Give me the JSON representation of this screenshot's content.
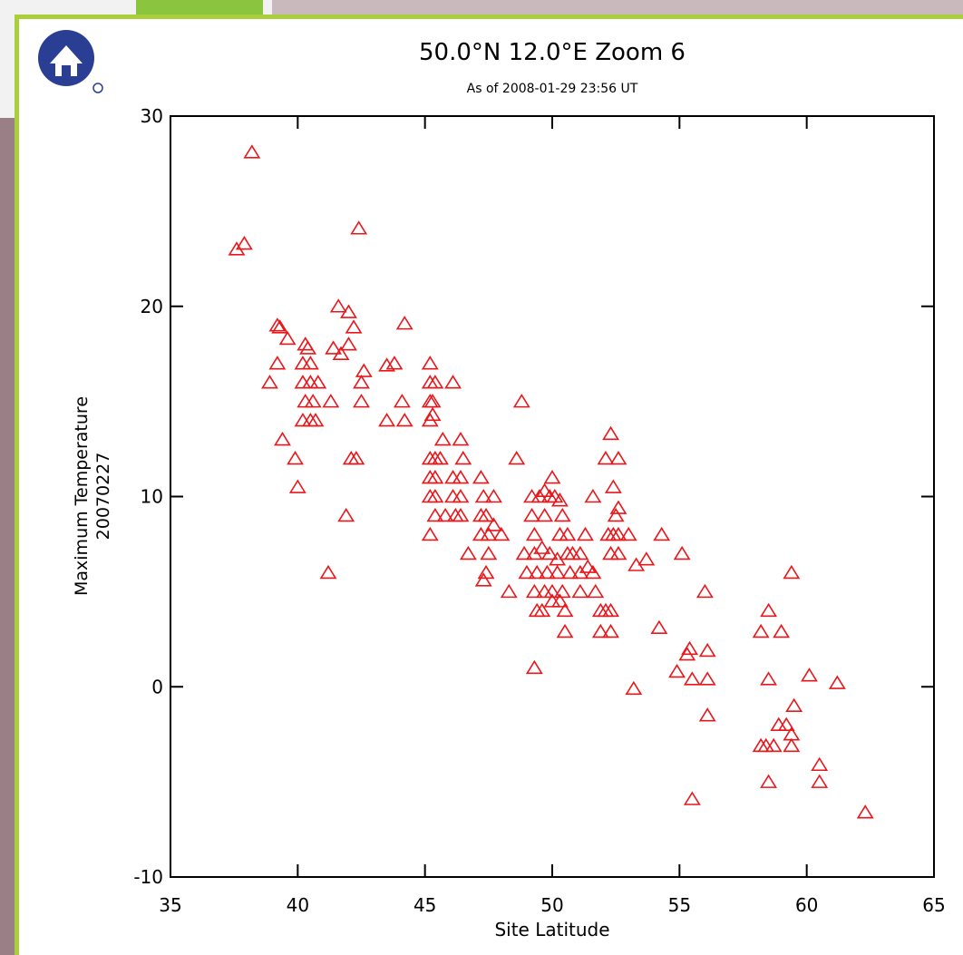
{
  "chart_data": {
    "type": "scatter",
    "title": "50.0°N 12.0°E Zoom 6",
    "subtitle": "As of 2008-01-29 23:56 UT",
    "x_label": "Site Latitude",
    "y_label": "Maximum Temperature",
    "y_label_2": "20070227",
    "xlim": [
      35,
      65
    ],
    "ylim": [
      -10,
      30
    ],
    "xticks": [
      35,
      40,
      45,
      50,
      55,
      60,
      65
    ],
    "yticks": [
      -10,
      0,
      10,
      20,
      30
    ],
    "marker": "triangle",
    "series": [
      {
        "color": "#e8171b",
        "x": [
          38.2,
          37.6,
          37.9,
          42.4,
          39.2,
          39.3,
          39.6,
          39.2,
          38.9,
          39.4,
          39.9,
          40.0,
          40.3,
          40.4,
          40.2,
          40.5,
          40.2,
          40.5,
          40.8,
          40.3,
          40.6,
          40.2,
          40.5,
          40.7,
          41.6,
          42.0,
          42.2,
          41.4,
          41.7,
          42.0,
          42.5,
          42.6,
          41.3,
          42.5,
          42.1,
          42.3,
          41.9,
          41.2,
          43.5,
          43.8,
          44.2,
          43.5,
          44.2,
          44.1,
          45.2,
          45.2,
          45.4,
          45.2,
          45.3,
          45.2,
          45.3,
          46.1,
          45.2,
          45.4,
          45.6,
          45.7,
          45.2,
          45.4,
          45.2,
          45.4,
          45.2,
          45.4,
          45.8,
          46.2,
          46.4,
          46.1,
          46.4,
          46.1,
          46.4,
          46.4,
          46.5,
          46.7,
          47.2,
          47.3,
          47.7,
          47.2,
          47.4,
          47.2,
          47.5,
          47.7,
          48.0,
          47.4,
          47.3,
          47.5,
          48.3,
          48.6,
          48.8,
          49.2,
          49.5,
          49.7,
          50.0,
          49.9,
          50.1,
          50.3,
          49.2,
          49.7,
          50.4,
          49.3,
          50.3,
          48.9,
          49.3,
          49.6,
          49.9,
          50.2,
          49.0,
          49.4,
          49.8,
          50.2,
          49.3,
          49.7,
          50.0,
          50.4,
          49.4,
          49.6,
          49.3,
          50.0,
          50.3,
          50.5,
          50.5,
          50.6,
          50.6,
          50.8,
          50.7,
          51.1,
          51.1,
          51.1,
          51.3,
          51.4,
          51.6,
          51.7,
          51.6,
          52.1,
          52.3,
          52.6,
          52.4,
          52.6,
          52.5,
          52.2,
          52.4,
          52.6,
          52.3,
          52.6,
          53.0,
          51.9,
          52.1,
          52.3,
          51.9,
          52.3,
          53.3,
          53.7,
          54.3,
          53.2,
          54.2,
          55.1,
          54.9,
          55.3,
          55.4,
          55.5,
          56.0,
          56.1,
          56.1,
          56.1,
          55.5,
          58.2,
          58.5,
          58.5,
          59.0,
          59.4,
          60.1,
          61.2,
          58.2,
          58.4,
          58.7,
          58.9,
          59.2,
          59.4,
          59.5,
          59.4,
          58.5,
          60.5,
          60.5,
          62.3
        ],
        "values": [
          28.1,
          23.0,
          23.3,
          24.1,
          19.0,
          18.9,
          18.3,
          17.0,
          16.0,
          13.0,
          12.0,
          10.5,
          18.0,
          17.8,
          17.0,
          17.0,
          16.0,
          16.0,
          16.0,
          15.0,
          15.0,
          14.0,
          14.0,
          14.0,
          20.0,
          19.7,
          18.9,
          17.8,
          17.5,
          18.0,
          16.0,
          16.6,
          15.0,
          15.0,
          12.0,
          12.0,
          9.0,
          6.0,
          16.9,
          17.0,
          19.1,
          14.0,
          14.0,
          15.0,
          17.0,
          16.0,
          16.0,
          15.0,
          15.0,
          14.0,
          14.3,
          16.0,
          12.0,
          12.0,
          12.0,
          13.0,
          11.0,
          11.0,
          10.0,
          10.0,
          8.0,
          9.0,
          9.0,
          9.0,
          9.0,
          11.0,
          11.0,
          10.0,
          10.0,
          13.0,
          12.0,
          7.0,
          11.0,
          10.0,
          10.0,
          9.0,
          9.0,
          8.0,
          8.0,
          8.5,
          8.0,
          6.0,
          5.6,
          7.0,
          5.0,
          12.0,
          15.0,
          10.0,
          10.0,
          10.3,
          11.0,
          10.0,
          10.0,
          9.8,
          9.0,
          9.0,
          9.0,
          8.0,
          8.0,
          7.0,
          7.0,
          7.3,
          7.0,
          6.7,
          6.0,
          6.0,
          6.0,
          6.0,
          5.0,
          5.0,
          5.0,
          5.0,
          4.0,
          4.0,
          1.0,
          4.5,
          4.5,
          4.0,
          2.9,
          8.0,
          7.0,
          7.0,
          6.0,
          7.0,
          6.0,
          5.0,
          8.0,
          6.3,
          6.0,
          5.0,
          10.0,
          12.0,
          13.3,
          12.0,
          10.5,
          9.4,
          9.0,
          8.0,
          8.0,
          8.0,
          7.0,
          7.0,
          8.0,
          4.0,
          4.0,
          4.0,
          2.9,
          2.9,
          6.4,
          6.7,
          8.0,
          -0.1,
          3.1,
          7.0,
          0.8,
          1.7,
          2.0,
          0.4,
          5.0,
          1.9,
          0.4,
          -1.5,
          -5.9,
          2.9,
          4.0,
          0.4,
          2.9,
          6.0,
          0.6,
          0.2,
          -3.1,
          -3.1,
          -3.1,
          -2.0,
          -2.0,
          -2.5,
          -1.0,
          -3.1,
          -5.0,
          -4.1,
          -5.0,
          -6.6
        ]
      }
    ]
  }
}
